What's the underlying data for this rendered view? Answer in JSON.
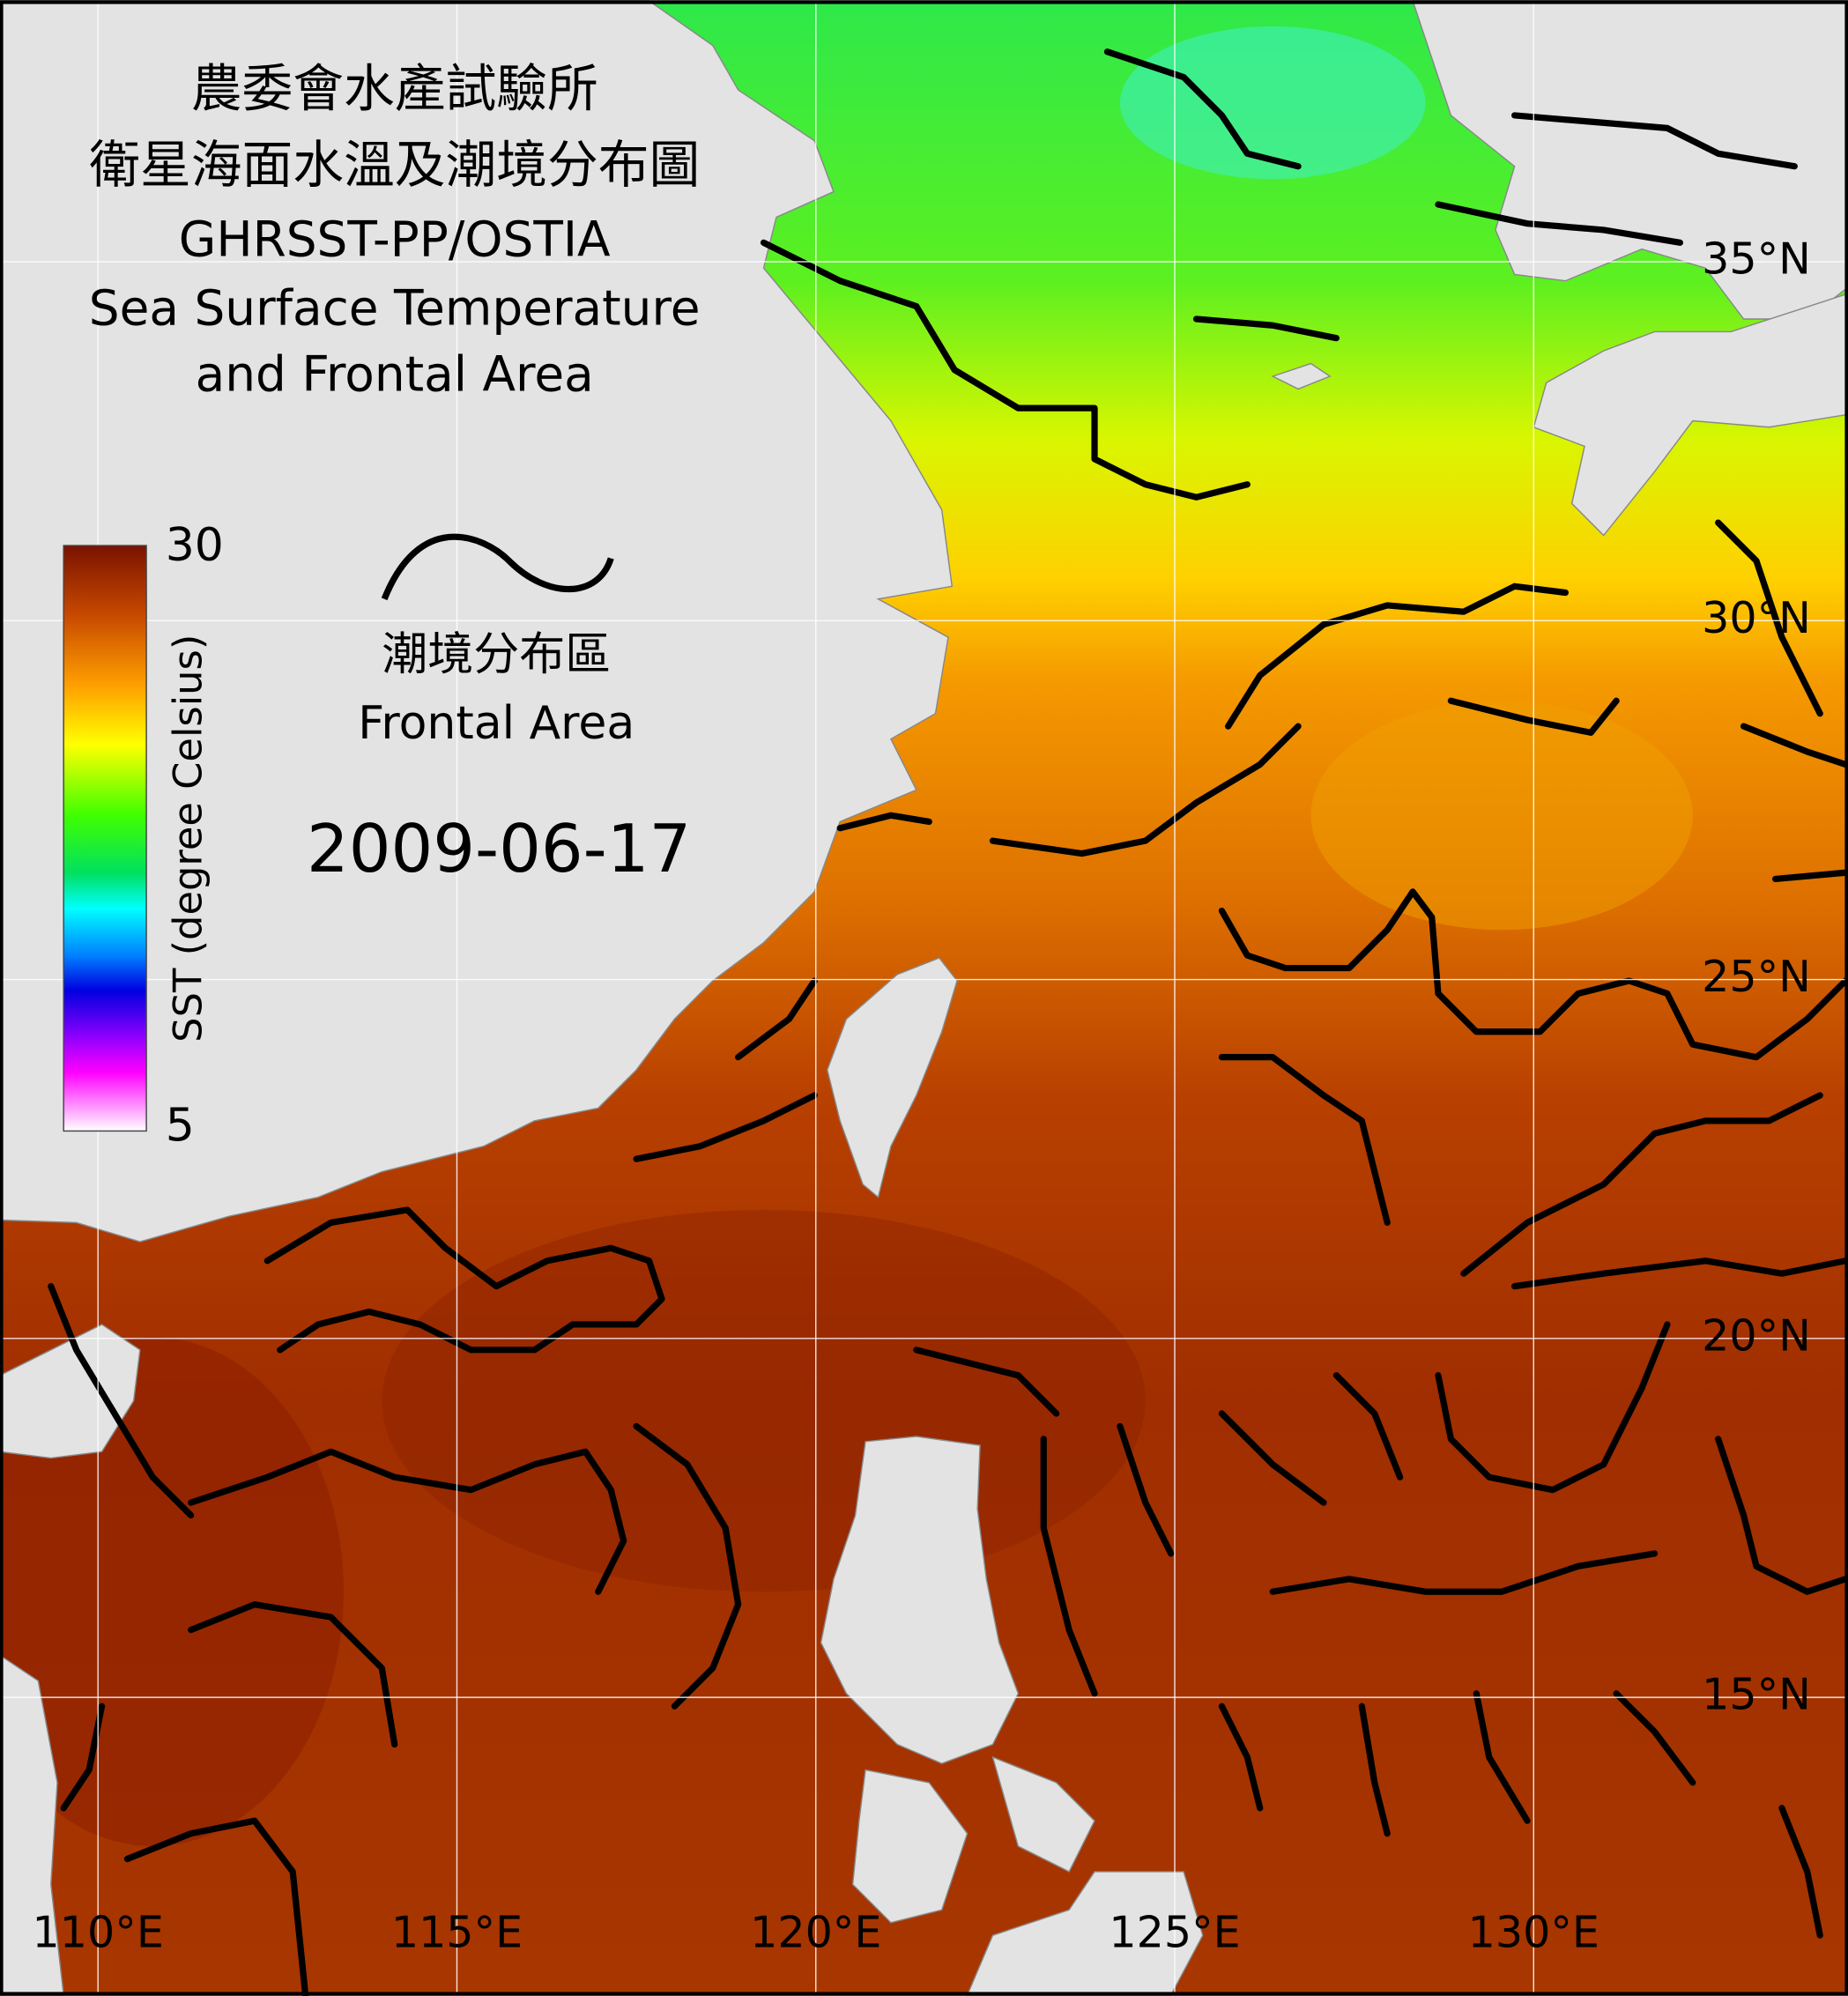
{
  "title": [
    "農委會水產試驗所",
    "衛星海面水溫及潮境分布圖",
    "GHRSST-PP/OSTIA",
    "Sea Surface Temperature",
    "and Frontal Area"
  ],
  "colorbar": {
    "label": "SST (degree Celsius)",
    "min": 5,
    "max": 30
  },
  "legend": {
    "label_zh": "潮境分布區",
    "label_en": "Frontal Area"
  },
  "date": "2009-06-17",
  "latitude_labels": [
    "35°N",
    "30°N",
    "25°N",
    "20°N",
    "15°N"
  ],
  "longitude_labels": [
    "110°E",
    "115°E",
    "120°E",
    "125°E",
    "130°E"
  ]
}
